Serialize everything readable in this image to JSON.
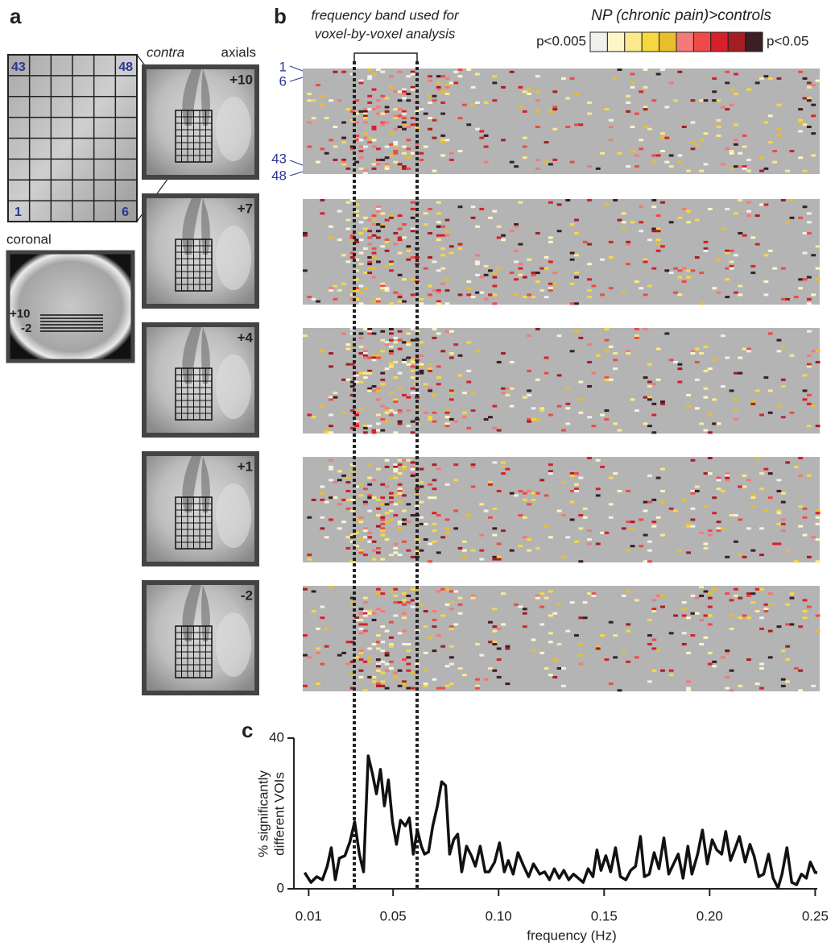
{
  "panel_labels": [
    "a",
    "b",
    "c"
  ],
  "panel_a": {
    "grid_labels": [
      "43",
      "48",
      "1",
      "6"
    ],
    "coronal": {
      "label": "coronal",
      "slices": [
        "+10",
        "-2"
      ]
    },
    "axial_header": [
      "contra",
      "axials"
    ],
    "axial_slices": [
      "+10",
      "+7",
      "+4",
      "+1",
      "-2"
    ]
  },
  "panel_b": {
    "band_note": [
      "frequency band used for",
      "voxel-by-voxel analysis"
    ],
    "row_labels": [
      "1",
      "6",
      "43",
      "48"
    ],
    "legend": {
      "title": "NP (chronic pain)>controls",
      "low": "p<0.005",
      "high": "p<0.05",
      "colors": [
        "#f0f0ee",
        "#fcf6c8",
        "#fbe98e",
        "#f8d840",
        "#e8bf2a",
        "#f27a78",
        "#ef4a46",
        "#d8202a",
        "#a51e24",
        "#3a1f24"
      ]
    }
  },
  "chart_data": {
    "type": "line",
    "color": "#111111",
    "xlabel": "frequency (Hz)",
    "ylabel": [
      "% significantly",
      "different VOIs"
    ],
    "xlim": [
      0.003,
      0.251
    ],
    "ylim": [
      0,
      40
    ],
    "xticks": [
      0.01,
      0.05,
      {
        "value": 0.1,
        "label": "0.10"
      },
      0.15,
      {
        "value": 0.2,
        "label": "0.20"
      },
      0.25
    ],
    "yticks": [
      0,
      40
    ],
    "x": [
      0.0081,
      0.0111,
      0.0138,
      0.0165,
      0.0188,
      0.0207,
      0.0226,
      0.0245,
      0.0272,
      0.0295,
      0.0318,
      0.034,
      0.036,
      0.0382,
      0.0402,
      0.0421,
      0.044,
      0.0459,
      0.0478,
      0.0497,
      0.0516,
      0.0535,
      0.0558,
      0.0577,
      0.0596,
      0.0615,
      0.0634,
      0.0649,
      0.0668,
      0.0688,
      0.071,
      0.073,
      0.0749,
      0.0768,
      0.0787,
      0.0806,
      0.0825,
      0.0848,
      0.0871,
      0.089,
      0.0913,
      0.0936,
      0.0955,
      0.0981,
      0.1004,
      0.1027,
      0.1046,
      0.1069,
      0.1092,
      0.1119,
      0.1142,
      0.1165,
      0.1195,
      0.1218,
      0.1241,
      0.1264,
      0.1287,
      0.1309,
      0.1332,
      0.1355,
      0.1378,
      0.1401,
      0.1424,
      0.1447,
      0.1466,
      0.1485,
      0.1508,
      0.1531,
      0.1554,
      0.1577,
      0.1603,
      0.1626,
      0.1649,
      0.1672,
      0.1691,
      0.1714,
      0.1737,
      0.176,
      0.1783,
      0.1806,
      0.1829,
      0.1851,
      0.1874,
      0.1897,
      0.1916,
      0.1943,
      0.1966,
      0.1989,
      0.2012,
      0.2034,
      0.2057,
      0.2076,
      0.2099,
      0.2122,
      0.2141,
      0.2168,
      0.2191,
      0.221,
      0.2233,
      0.2256,
      0.2279,
      0.2301,
      0.2324,
      0.2343,
      0.2366,
      0.2389,
      0.2412,
      0.2435,
      0.2458,
      0.2477,
      0.25,
      0.251
    ],
    "values": [
      4.3,
      1.7,
      3.2,
      2.4,
      6.0,
      10.9,
      2.4,
      8.1,
      8.8,
      12.4,
      17.8,
      9.2,
      4.5,
      35.3,
      30.6,
      25.2,
      31.7,
      22.0,
      28.9,
      17.8,
      11.8,
      18.2,
      16.7,
      18.8,
      9.2,
      15.6,
      11.3,
      9.2,
      9.8,
      16.7,
      22.0,
      28.4,
      27.4,
      9.2,
      13.0,
      14.5,
      4.5,
      11.3,
      8.8,
      6.0,
      11.3,
      4.5,
      4.5,
      7.1,
      12.2,
      4.5,
      7.5,
      3.9,
      9.6,
      6.0,
      3.2,
      6.6,
      3.9,
      4.5,
      2.4,
      5.3,
      2.8,
      4.9,
      2.4,
      3.9,
      2.8,
      1.7,
      5.3,
      3.2,
      10.3,
      4.9,
      8.8,
      4.5,
      10.9,
      3.2,
      2.4,
      4.9,
      6.0,
      13.9,
      3.2,
      3.9,
      9.6,
      5.3,
      13.5,
      3.9,
      6.6,
      9.2,
      2.8,
      11.3,
      3.9,
      9.2,
      15.6,
      6.6,
      13.0,
      10.3,
      9.2,
      15.2,
      7.5,
      10.9,
      13.9,
      7.1,
      11.8,
      8.8,
      3.2,
      3.9,
      9.2,
      2.8,
      0.2,
      3.9,
      10.9,
      1.7,
      1.1,
      3.9,
      2.8,
      7.1,
      4.3,
      4.3
    ]
  }
}
